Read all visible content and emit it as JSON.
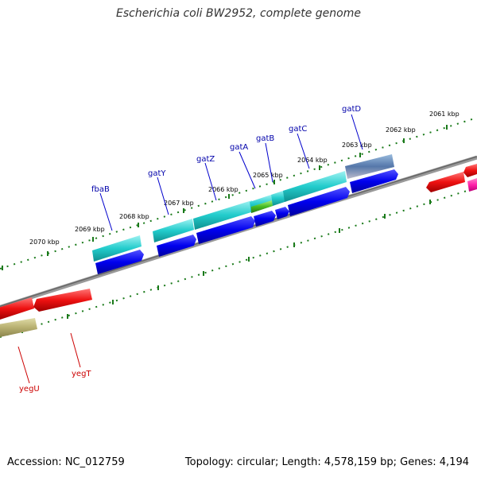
{
  "title": "Escherichia coli BW2952, complete genome",
  "footer": {
    "accession": "Accession: NC_012759",
    "topology": "Topology: circular; Length: 4,578,159 bp; Genes: 4,194"
  },
  "tick_labels": [
    "2061 kbp",
    "2062 kbp",
    "2063 kbp",
    "2064 kbp",
    "2065 kbp",
    "2066 kbp",
    "2067 kbp",
    "2068 kbp",
    "2069 kbp",
    "2070 kbp"
  ],
  "genes_forward": [
    {
      "name": "fbaB",
      "color": "#000099"
    },
    {
      "name": "gatY",
      "color": "#000099"
    },
    {
      "name": "gatZ",
      "color": "#000099"
    },
    {
      "name": "gatA",
      "color": "#000099"
    },
    {
      "name": "gatB",
      "color": "#000099"
    },
    {
      "name": "gatC",
      "color": "#000099"
    },
    {
      "name": "gatD",
      "color": "#000099"
    }
  ],
  "genes_reverse": [
    {
      "name": "yegU",
      "color": "#cc0000"
    },
    {
      "name": "yegT",
      "color": "#cc0000"
    }
  ],
  "colors": {
    "backbone": "#888888",
    "ticks": "#1a7a1a",
    "forward_gene_arrow": "#0000ee",
    "forward_feature_box": "#22cccc",
    "reverse_gene_arrow": "#ee1111",
    "reverse_feature_box": "#b8b070",
    "misc_feature_green": "#44bb22",
    "misc_feature_steel": "#5577aa",
    "misc_feature_pink": "#ff22aa"
  }
}
